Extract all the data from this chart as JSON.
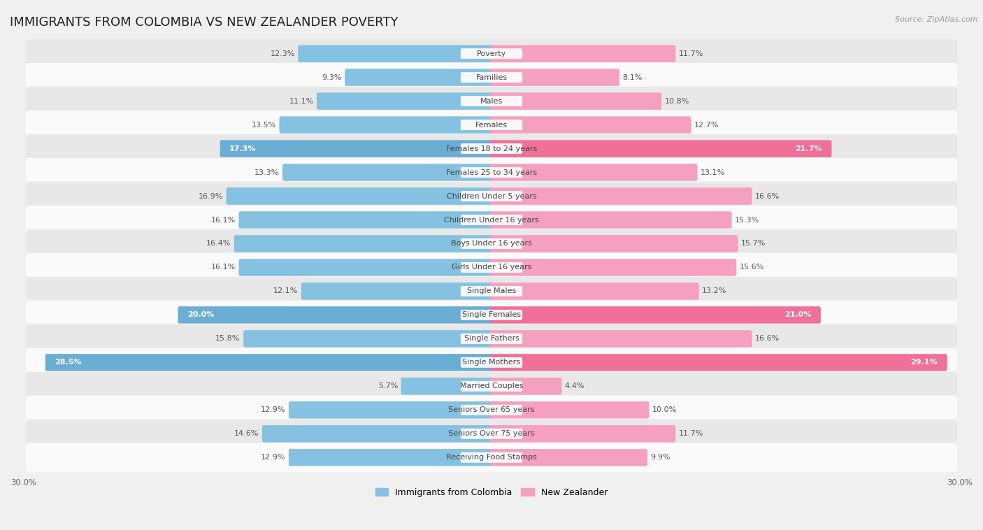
{
  "title": "IMMIGRANTS FROM COLOMBIA VS NEW ZEALANDER POVERTY",
  "source": "Source: ZipAtlas.com",
  "categories": [
    "Poverty",
    "Families",
    "Males",
    "Females",
    "Females 18 to 24 years",
    "Females 25 to 34 years",
    "Children Under 5 years",
    "Children Under 16 years",
    "Boys Under 16 years",
    "Girls Under 16 years",
    "Single Males",
    "Single Females",
    "Single Fathers",
    "Single Mothers",
    "Married Couples",
    "Seniors Over 65 years",
    "Seniors Over 75 years",
    "Receiving Food Stamps"
  ],
  "colombia_values": [
    12.3,
    9.3,
    11.1,
    13.5,
    17.3,
    13.3,
    16.9,
    16.1,
    16.4,
    16.1,
    12.1,
    20.0,
    15.8,
    28.5,
    5.7,
    12.9,
    14.6,
    12.9
  ],
  "nz_values": [
    11.7,
    8.1,
    10.8,
    12.7,
    21.7,
    13.1,
    16.6,
    15.3,
    15.7,
    15.6,
    13.2,
    21.0,
    16.6,
    29.1,
    4.4,
    10.0,
    11.7,
    9.9
  ],
  "colombia_color": "#85c1e0",
  "nz_color": "#f4a0be",
  "colombia_highlight_color": "#6aadd5",
  "nz_highlight_color": "#f07099",
  "highlight_rows": [
    4,
    11,
    13
  ],
  "x_max": 30.0,
  "bar_height": 0.52,
  "background_color": "#f0f0f0",
  "row_even_color": "#e8e8e8",
  "row_odd_color": "#fafafa",
  "title_fontsize": 13,
  "label_fontsize": 8.5,
  "value_fontsize": 8,
  "legend_fontsize": 9,
  "category_fontsize": 8
}
